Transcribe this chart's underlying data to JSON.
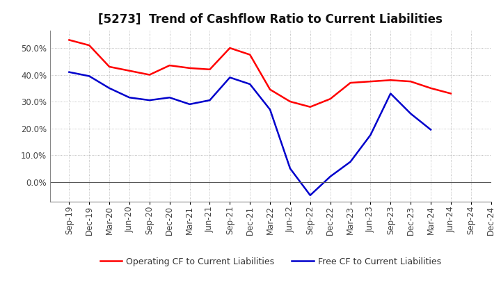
{
  "title": "[5273]  Trend of Cashflow Ratio to Current Liabilities",
  "x_labels": [
    "Sep-19",
    "Dec-19",
    "Mar-20",
    "Jun-20",
    "Sep-20",
    "Dec-20",
    "Mar-21",
    "Jun-21",
    "Sep-21",
    "Dec-21",
    "Mar-22",
    "Jun-22",
    "Sep-22",
    "Dec-22",
    "Mar-23",
    "Jun-23",
    "Sep-23",
    "Dec-23",
    "Mar-24",
    "Jun-24",
    "Sep-24",
    "Dec-24"
  ],
  "operating_cf": [
    0.53,
    0.51,
    0.43,
    0.415,
    0.4,
    0.435,
    0.425,
    0.42,
    0.5,
    0.475,
    0.345,
    0.3,
    0.28,
    0.31,
    0.37,
    0.375,
    0.38,
    0.375,
    0.35,
    0.33,
    null,
    null
  ],
  "free_cf": [
    0.41,
    0.395,
    0.35,
    0.315,
    0.305,
    0.315,
    0.29,
    0.305,
    0.39,
    0.365,
    0.27,
    0.05,
    -0.05,
    0.02,
    0.075,
    0.175,
    0.33,
    0.255,
    0.195,
    null,
    null,
    null
  ],
  "operating_color": "#ff0000",
  "free_color": "#0000cc",
  "background_color": "#ffffff",
  "plot_bg_color": "#ffffff",
  "grid_color": "#999999",
  "ylim": [
    -0.075,
    0.565
  ],
  "yticks": [
    0.0,
    0.1,
    0.2,
    0.3,
    0.4,
    0.5
  ],
  "legend_labels": [
    "Operating CF to Current Liabilities",
    "Free CF to Current Liabilities"
  ],
  "title_fontsize": 12,
  "axis_fontsize": 8.5
}
